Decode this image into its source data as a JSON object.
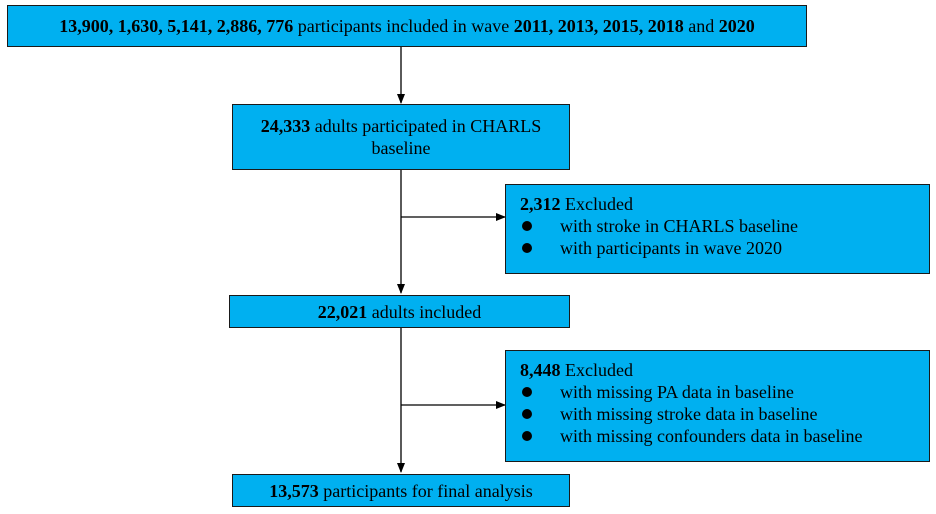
{
  "box1": {
    "parts": [
      {
        "t": "13,900, 1,630, 5,141, 2,886, 776",
        "b": true
      },
      {
        "t": " participants included in wave ",
        "b": false
      },
      {
        "t": "2011, 2013, 2015, 2018",
        "b": true
      },
      {
        "t": " and ",
        "b": false
      },
      {
        "t": "2020",
        "b": true
      }
    ]
  },
  "box2": {
    "line1_bold": "24,333",
    "line1_rest": " adults participated in CHARLS",
    "line2": "baseline"
  },
  "excl1": {
    "count": "2,312",
    "label": " Excluded",
    "items": [
      "with stroke in CHARLS baseline",
      "with participants in wave 2020"
    ]
  },
  "box3": {
    "bold": "22,021",
    "rest": " adults included"
  },
  "excl2": {
    "count": "8,448",
    "label": " Excluded",
    "items": [
      "with missing PA data in baseline",
      "with missing stroke data in baseline",
      "with missing confounders data in baseline"
    ]
  },
  "box4": {
    "bold": "13,573",
    "rest": " participants for final analysis"
  }
}
